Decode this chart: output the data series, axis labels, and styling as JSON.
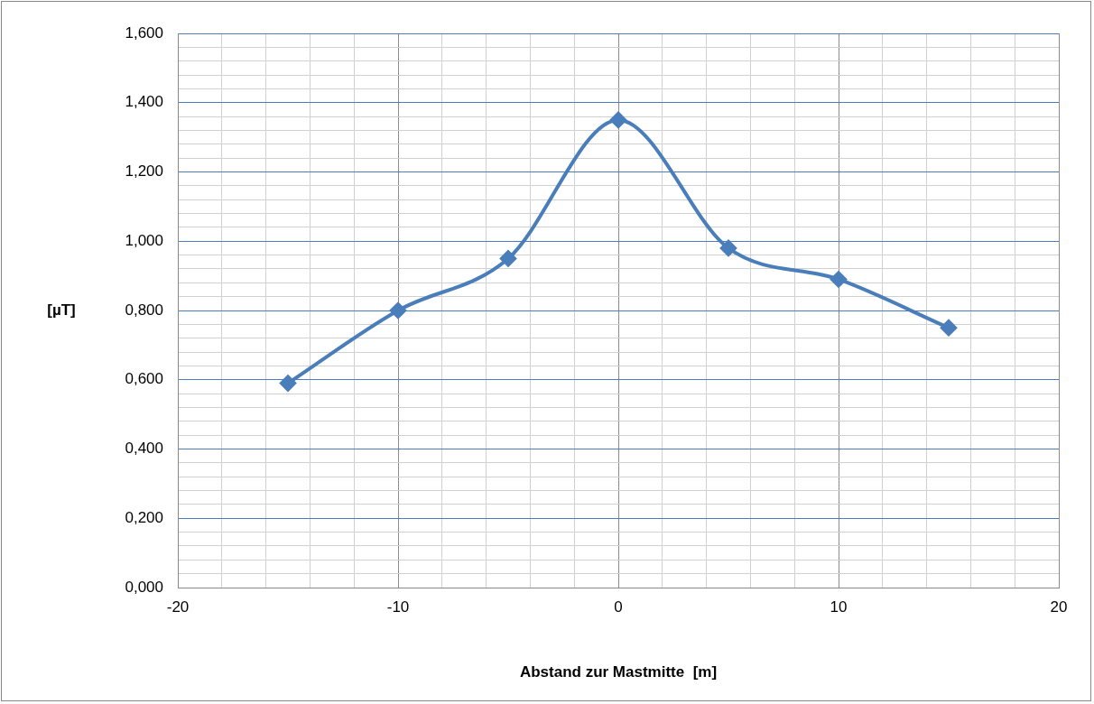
{
  "chart_data": {
    "type": "line",
    "xlabel": "Abstand zur Mastmitte  [m]",
    "ylabel": "[µT]",
    "x": [
      -15,
      -10,
      -5,
      0,
      5,
      10,
      15
    ],
    "series": [
      {
        "color": "#4a7ebb",
        "values": [
          0.59,
          0.8,
          0.95,
          1.35,
          0.98,
          0.89,
          0.75
        ]
      }
    ],
    "xlim": [
      -20,
      20
    ],
    "xticks": [
      -20,
      {
        "value": -18,
        "label": null
      },
      {
        "value": -16,
        "label": null
      },
      {
        "value": -14,
        "label": null
      },
      {
        "value": -12,
        "label": null
      },
      -10,
      {
        "value": -8,
        "label": null
      },
      {
        "value": -6,
        "label": null
      },
      {
        "value": -4,
        "label": null
      },
      {
        "value": -2,
        "label": null
      },
      0,
      {
        "value": 2,
        "label": null
      },
      {
        "value": 4,
        "label": null
      },
      {
        "value": 6,
        "label": null
      },
      {
        "value": 8,
        "label": null
      },
      10,
      {
        "value": 12,
        "label": null
      },
      {
        "value": 14,
        "label": null
      },
      {
        "value": 16,
        "label": null
      },
      {
        "value": 18,
        "label": null
      },
      20
    ],
    "ylim": [
      0,
      1.6
    ],
    "yticks": [
      {
        "value": 0,
        "label": "0,000"
      },
      {
        "value": 0.04,
        "label": null
      },
      {
        "value": 0.08,
        "label": null
      },
      {
        "value": 0.12,
        "label": null
      },
      {
        "value": 0.16,
        "label": null
      },
      {
        "value": 0.2,
        "label": "0,200"
      },
      {
        "value": 0.24,
        "label": null
      },
      {
        "value": 0.28,
        "label": null
      },
      {
        "value": 0.32,
        "label": null
      },
      {
        "value": 0.36,
        "label": null
      },
      {
        "value": 0.4,
        "label": "0,400"
      },
      {
        "value": 0.44,
        "label": null
      },
      {
        "value": 0.48,
        "label": null
      },
      {
        "value": 0.52,
        "label": null
      },
      {
        "value": 0.56,
        "label": null
      },
      {
        "value": 0.6,
        "label": "0,600"
      },
      {
        "value": 0.64,
        "label": null
      },
      {
        "value": 0.68,
        "label": null
      },
      {
        "value": 0.72,
        "label": null
      },
      {
        "value": 0.76,
        "label": null
      },
      {
        "value": 0.8,
        "label": "0,800"
      },
      {
        "value": 0.84,
        "label": null
      },
      {
        "value": 0.88,
        "label": null
      },
      {
        "value": 0.92,
        "label": null
      },
      {
        "value": 0.96,
        "label": null
      },
      {
        "value": 1.0,
        "label": "1,000"
      },
      {
        "value": 1.04,
        "label": null
      },
      {
        "value": 1.08,
        "label": null
      },
      {
        "value": 1.12,
        "label": null
      },
      {
        "value": 1.16,
        "label": null
      },
      {
        "value": 1.2,
        "label": "1,200"
      },
      {
        "value": 1.24,
        "label": null
      },
      {
        "value": 1.28,
        "label": null
      },
      {
        "value": 1.32,
        "label": null
      },
      {
        "value": 1.36,
        "label": null
      },
      {
        "value": 1.4,
        "label": "1,400"
      },
      {
        "value": 1.44,
        "label": null
      },
      {
        "value": 1.48,
        "label": null
      },
      {
        "value": 1.52,
        "label": null
      },
      {
        "value": 1.56,
        "label": null
      },
      {
        "value": 1.6,
        "label": "1,600"
      }
    ],
    "grid": true,
    "legend": false,
    "marker": "diamond",
    "line_style": "solid"
  }
}
